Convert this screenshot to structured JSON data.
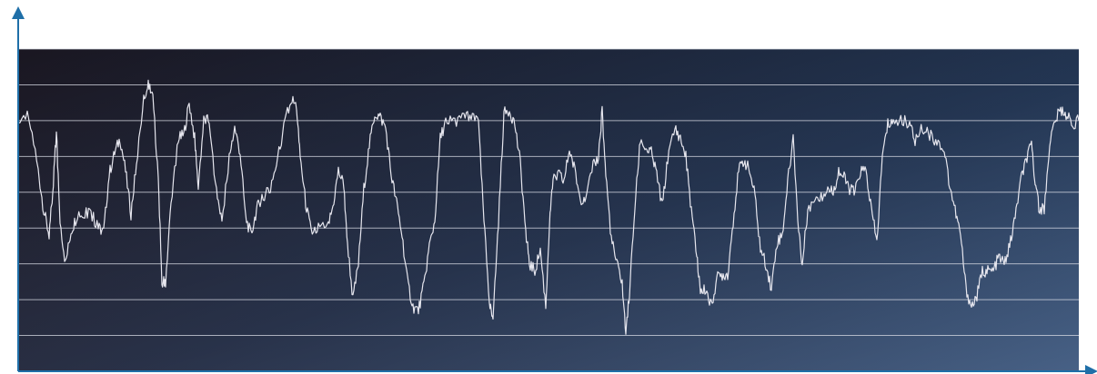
{
  "chart_data": {
    "type": "line",
    "title": "",
    "xlabel": "",
    "ylabel": "",
    "grid": true,
    "legend": "none",
    "ylim": [
      0,
      9
    ],
    "x_range": [
      0,
      1166
    ],
    "colors": {
      "axis": "#1f6fa8",
      "line": "#e6e6ee",
      "grid": "#d8dbe4",
      "bg_top_left": "#11121c",
      "bg_top_right": "#0f2a4e",
      "bg_bottom_left": "#55515f",
      "bg_bottom_right": "#5a7398"
    },
    "series": [
      {
        "values": [
          [
            0,
            7.1
          ],
          [
            12,
            7.1
          ],
          [
            22,
            5.6
          ],
          [
            28,
            4.5
          ],
          [
            34,
            3.8
          ],
          [
            38,
            5.0
          ],
          [
            42,
            6.7
          ],
          [
            46,
            4.2
          ],
          [
            52,
            3.0
          ],
          [
            58,
            3.9
          ],
          [
            64,
            4.3
          ],
          [
            72,
            4.4
          ],
          [
            80,
            4.4
          ],
          [
            88,
            4.0
          ],
          [
            94,
            3.9
          ],
          [
            100,
            5.5
          ],
          [
            106,
            6.1
          ],
          [
            112,
            6.5
          ],
          [
            118,
            5.6
          ],
          [
            124,
            4.4
          ],
          [
            130,
            5.8
          ],
          [
            138,
            7.6
          ],
          [
            143,
            8.0
          ],
          [
            148,
            7.7
          ],
          [
            154,
            5.4
          ],
          [
            158,
            2.5
          ],
          [
            162,
            2.5
          ],
          [
            168,
            4.7
          ],
          [
            176,
            6.5
          ],
          [
            182,
            6.6
          ],
          [
            188,
            7.5
          ],
          [
            194,
            6.5
          ],
          [
            198,
            5.2
          ],
          [
            204,
            7.0
          ],
          [
            210,
            7.0
          ],
          [
            218,
            5.0
          ],
          [
            224,
            4.2
          ],
          [
            232,
            6.0
          ],
          [
            238,
            6.8
          ],
          [
            244,
            6.1
          ],
          [
            250,
            4.3
          ],
          [
            256,
            3.8
          ],
          [
            262,
            4.5
          ],
          [
            268,
            4.9
          ],
          [
            276,
            5.0
          ],
          [
            284,
            5.8
          ],
          [
            292,
            6.8
          ],
          [
            300,
            7.6
          ],
          [
            306,
            7.4
          ],
          [
            310,
            6.0
          ],
          [
            316,
            4.7
          ],
          [
            322,
            3.9
          ],
          [
            330,
            4.0
          ],
          [
            340,
            4.0
          ],
          [
            346,
            4.6
          ],
          [
            352,
            5.6
          ],
          [
            358,
            5.2
          ],
          [
            362,
            3.6
          ],
          [
            368,
            2.0
          ],
          [
            374,
            3.0
          ],
          [
            380,
            5.1
          ],
          [
            386,
            6.3
          ],
          [
            392,
            7.2
          ],
          [
            398,
            7.1
          ],
          [
            404,
            6.8
          ],
          [
            410,
            5.5
          ],
          [
            416,
            4.7
          ],
          [
            422,
            3.8
          ],
          [
            428,
            2.5
          ],
          [
            434,
            1.8
          ],
          [
            440,
            1.7
          ],
          [
            446,
            2.4
          ],
          [
            452,
            3.5
          ],
          [
            458,
            4.2
          ],
          [
            464,
            6.5
          ],
          [
            470,
            7.0
          ],
          [
            480,
            7.0
          ],
          [
            490,
            7.1
          ],
          [
            498,
            7.1
          ],
          [
            506,
            6.9
          ],
          [
            512,
            4.2
          ],
          [
            518,
            2.0
          ],
          [
            522,
            1.5
          ],
          [
            528,
            4.2
          ],
          [
            534,
            7.2
          ],
          [
            540,
            7.3
          ],
          [
            546,
            6.9
          ],
          [
            552,
            5.8
          ],
          [
            558,
            3.9
          ],
          [
            562,
            3.0
          ],
          [
            568,
            2.8
          ],
          [
            574,
            3.4
          ],
          [
            580,
            1.8
          ],
          [
            584,
            4.1
          ],
          [
            588,
            5.3
          ],
          [
            594,
            5.5
          ],
          [
            600,
            5.3
          ],
          [
            606,
            6.2
          ],
          [
            612,
            5.6
          ],
          [
            618,
            4.8
          ],
          [
            624,
            4.9
          ],
          [
            632,
            5.7
          ],
          [
            638,
            6.0
          ],
          [
            642,
            7.3
          ],
          [
            646,
            5.5
          ],
          [
            652,
            3.7
          ],
          [
            658,
            3.0
          ],
          [
            664,
            2.5
          ],
          [
            668,
            1.0
          ],
          [
            672,
            2.2
          ],
          [
            678,
            4.6
          ],
          [
            684,
            6.5
          ],
          [
            690,
            6.2
          ],
          [
            696,
            6.1
          ],
          [
            702,
            5.5
          ],
          [
            708,
            4.6
          ],
          [
            714,
            5.9
          ],
          [
            722,
            6.8
          ],
          [
            728,
            6.5
          ],
          [
            734,
            6.0
          ],
          [
            740,
            4.5
          ],
          [
            746,
            3.2
          ],
          [
            750,
            2.2
          ],
          [
            756,
            2.3
          ],
          [
            762,
            1.8
          ],
          [
            768,
            2.6
          ],
          [
            774,
            2.7
          ],
          [
            780,
            2.7
          ],
          [
            786,
            4.2
          ],
          [
            792,
            5.6
          ],
          [
            798,
            5.9
          ],
          [
            804,
            5.6
          ],
          [
            810,
            4.9
          ],
          [
            816,
            3.4
          ],
          [
            822,
            3.0
          ],
          [
            828,
            2.3
          ],
          [
            834,
            3.6
          ],
          [
            840,
            3.8
          ],
          [
            846,
            5.3
          ],
          [
            852,
            6.5
          ],
          [
            858,
            3.9
          ],
          [
            862,
            3.0
          ],
          [
            868,
            4.5
          ],
          [
            876,
            4.8
          ],
          [
            884,
            4.9
          ],
          [
            890,
            5.1
          ],
          [
            896,
            5.0
          ],
          [
            902,
            5.6
          ],
          [
            908,
            5.4
          ],
          [
            914,
            5.1
          ],
          [
            920,
            5.0
          ],
          [
            926,
            5.6
          ],
          [
            932,
            5.6
          ],
          [
            938,
            4.5
          ],
          [
            944,
            3.6
          ],
          [
            950,
            6.0
          ],
          [
            956,
            6.9
          ],
          [
            962,
            7.0
          ],
          [
            972,
            7.0
          ],
          [
            980,
            6.9
          ],
          [
            986,
            6.4
          ],
          [
            994,
            6.8
          ],
          [
            1002,
            6.6
          ],
          [
            1010,
            6.4
          ],
          [
            1018,
            6.2
          ],
          [
            1024,
            5.2
          ],
          [
            1030,
            4.5
          ],
          [
            1036,
            3.8
          ],
          [
            1042,
            2.3
          ],
          [
            1048,
            1.8
          ],
          [
            1054,
            2.1
          ],
          [
            1060,
            2.8
          ],
          [
            1066,
            2.8
          ],
          [
            1072,
            2.8
          ],
          [
            1078,
            3.2
          ],
          [
            1084,
            3.0
          ],
          [
            1090,
            3.5
          ],
          [
            1096,
            4.3
          ],
          [
            1102,
            5.3
          ],
          [
            1108,
            5.9
          ],
          [
            1114,
            6.3
          ],
          [
            1118,
            5.2
          ],
          [
            1122,
            4.6
          ],
          [
            1128,
            4.5
          ],
          [
            1134,
            6.4
          ],
          [
            1140,
            7.0
          ],
          [
            1146,
            7.3
          ],
          [
            1152,
            7.2
          ],
          [
            1158,
            6.9
          ],
          [
            1166,
            7.0
          ]
        ]
      }
    ]
  }
}
